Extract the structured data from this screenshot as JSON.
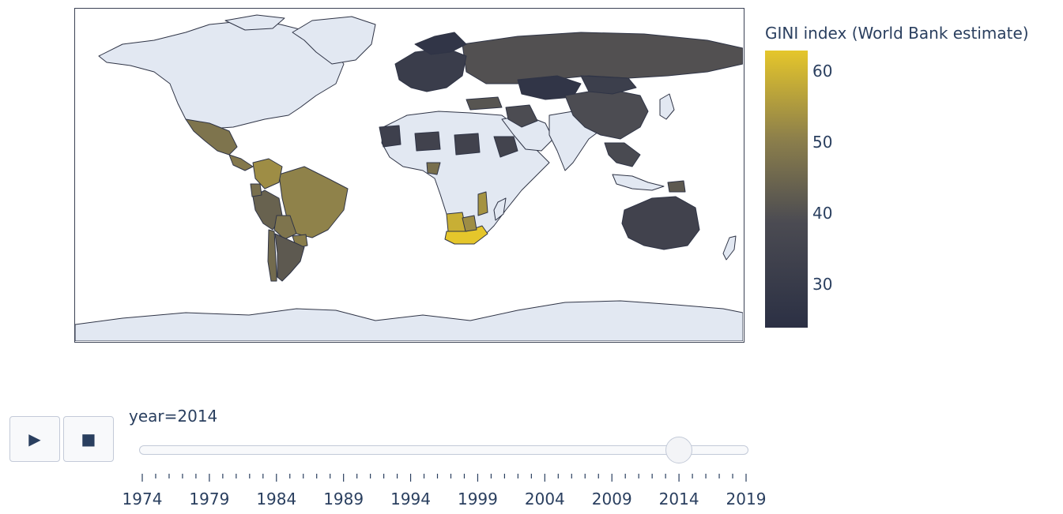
{
  "colorbar": {
    "title": "GINI index (World Bank estimate)",
    "ticks": [
      60,
      50,
      40,
      30
    ],
    "range": [
      24,
      63
    ],
    "colors": [
      "#2b3044",
      "#4b4b52",
      "#8c7f4b",
      "#e5c62b"
    ]
  },
  "map": {
    "no_data_color": "#e2e8f2",
    "border_color": "#2f3446",
    "countries": [
      {
        "name": "Mexico",
        "gini": 48
      },
      {
        "name": "Brazil",
        "gini": 51
      },
      {
        "name": "Colombia",
        "gini": 53
      },
      {
        "name": "Peru",
        "gini": 44
      },
      {
        "name": "Bolivia",
        "gini": 48
      },
      {
        "name": "Paraguay",
        "gini": 50
      },
      {
        "name": "Argentina",
        "gini": 42
      },
      {
        "name": "Chile",
        "gini": 46
      },
      {
        "name": "Ecuador",
        "gini": 47
      },
      {
        "name": "Central America",
        "gini": 49
      },
      {
        "name": "Russia",
        "gini": 40
      },
      {
        "name": "Kazakhstan",
        "gini": 27
      },
      {
        "name": "China",
        "gini": 39
      },
      {
        "name": "Australia",
        "gini": 34
      },
      {
        "name": "South Africa",
        "gini": 63
      },
      {
        "name": "Namibia",
        "gini": 59
      },
      {
        "name": "Mozambique",
        "gini": 54
      },
      {
        "name": "Botswana",
        "gini": 53
      },
      {
        "name": "Europe",
        "gini": 31
      },
      {
        "name": "Scandinavia",
        "gini": 27
      },
      {
        "name": "Turkey",
        "gini": 41
      },
      {
        "name": "Iran",
        "gini": 39
      },
      {
        "name": "Sudan",
        "gini": 34
      },
      {
        "name": "Ethiopia",
        "gini": 35
      },
      {
        "name": "Mali",
        "gini": 33
      },
      {
        "name": "Niger",
        "gini": 34
      },
      {
        "name": "Cameroon",
        "gini": 47
      },
      {
        "name": "Southeast Asia",
        "gini": 38
      },
      {
        "name": "Papua New Guinea",
        "gini": 42
      },
      {
        "name": "Mongolia",
        "gini": 32
      }
    ]
  },
  "controls": {
    "play_icon": "▶",
    "stop_icon": "■",
    "current_value_label": "year=2014"
  },
  "slider": {
    "min": 1974,
    "max": 2019,
    "value": 2014,
    "tick_labels": [
      "1974",
      "1979",
      "1984",
      "1989",
      "1994",
      "1999",
      "2004",
      "2009",
      "2014",
      "2019"
    ]
  }
}
